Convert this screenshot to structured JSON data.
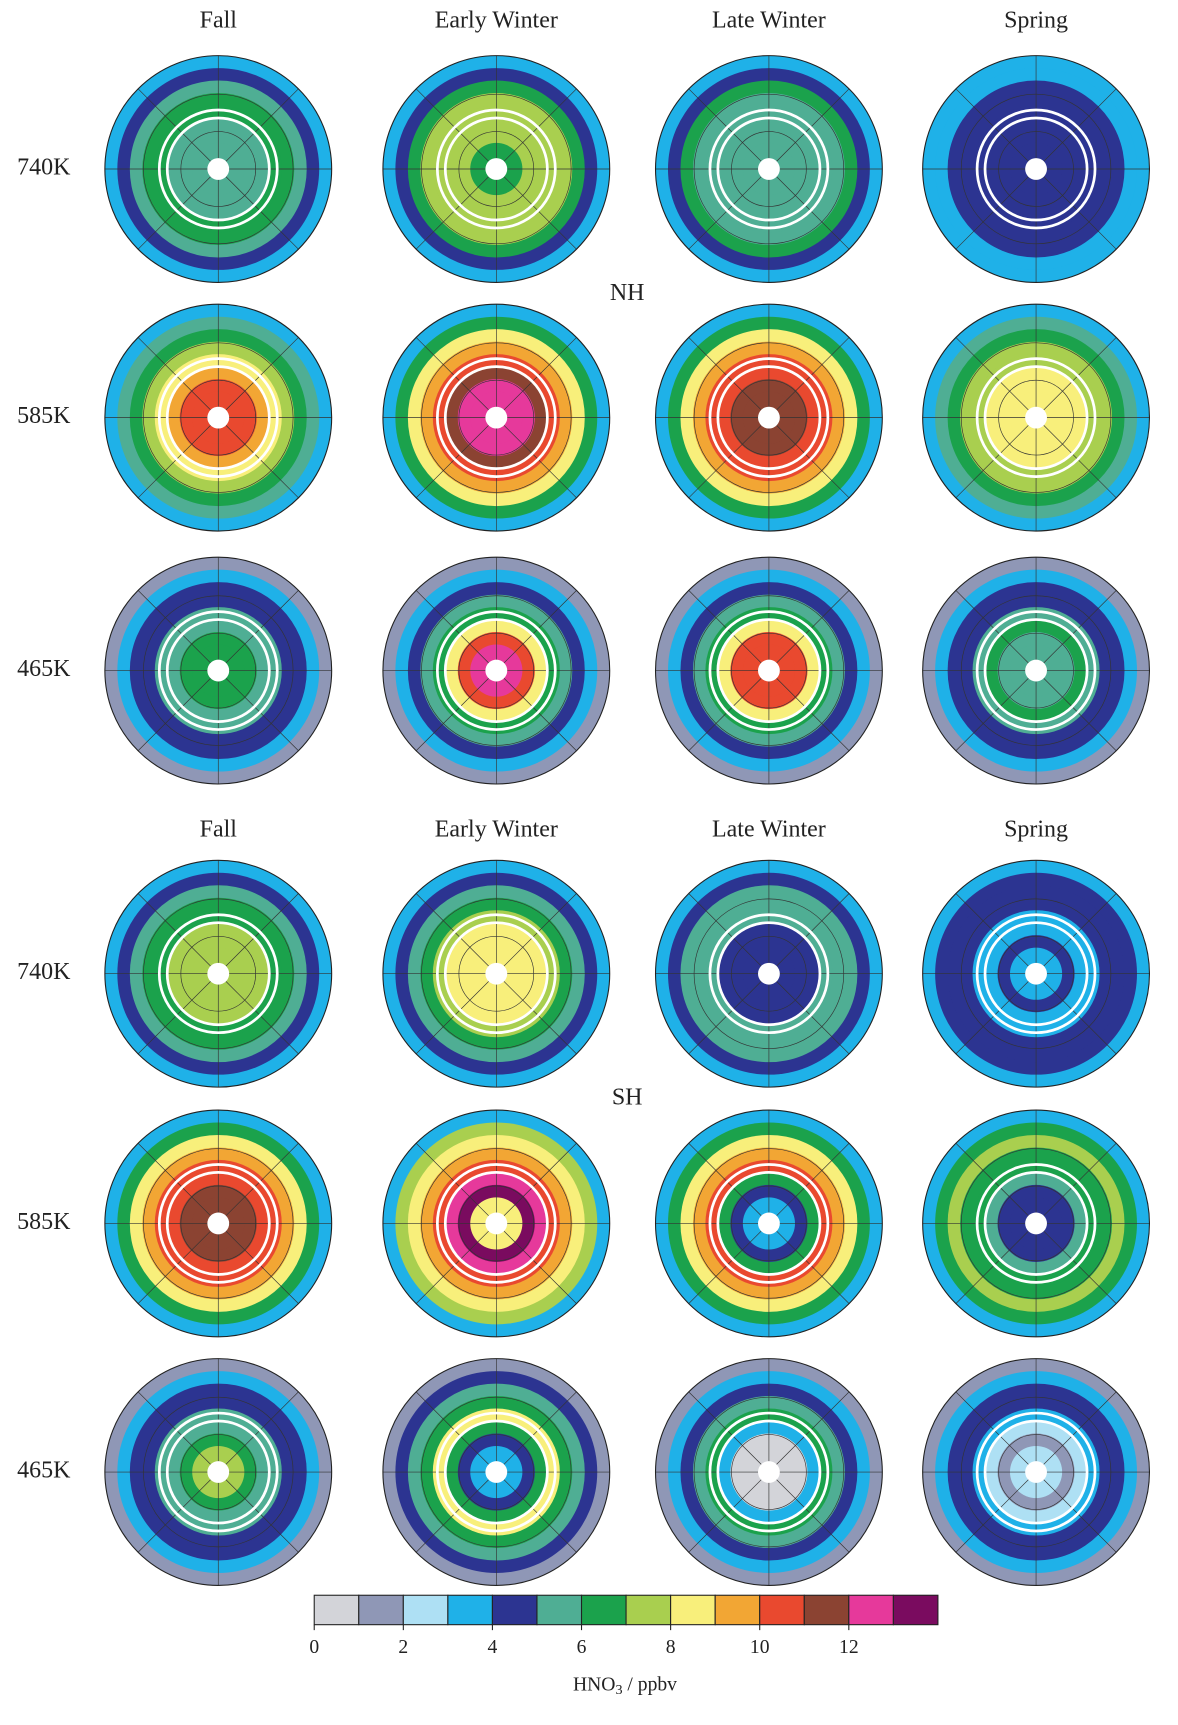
{
  "sections": [
    {
      "label": "NH",
      "columns": [
        "Fall",
        "Early Winter",
        "Late Winter",
        "Spring"
      ],
      "rows": [
        {
          "label": "740K",
          "maps": [
            [
              3.5,
              4.5,
              5.5,
              6.5,
              6.5,
              5.5,
              5.5,
              5.5
            ],
            [
              3.5,
              4.5,
              6.5,
              7.5,
              7.5,
              7.5,
              7.5,
              6.5
            ],
            [
              3.5,
              4.5,
              6.5,
              5.5,
              5.5,
              5.5,
              5.5,
              5.5
            ],
            [
              3.5,
              3.5,
              4.5,
              4.5,
              4.5,
              4.5,
              4.5,
              4.5
            ]
          ]
        },
        {
          "label": "585K",
          "maps": [
            [
              3.5,
              5.5,
              6.5,
              7.5,
              8.5,
              9.5,
              10.5,
              10.5
            ],
            [
              3.5,
              6.5,
              8.5,
              9.5,
              10.5,
              11.5,
              12.5,
              12.5
            ],
            [
              3.5,
              6.5,
              8.5,
              9.5,
              10.5,
              10.5,
              11.5,
              11.5
            ],
            [
              3.5,
              5.5,
              6.5,
              7.5,
              7.5,
              8.5,
              8.5,
              8.5
            ]
          ]
        },
        {
          "label": "465K",
          "maps": [
            [
              1.5,
              3.5,
              4.5,
              4.5,
              5.5,
              5.5,
              6.5,
              6.5
            ],
            [
              1.5,
              3.5,
              4.5,
              5.5,
              6.5,
              8.5,
              10.5,
              12.5
            ],
            [
              1.5,
              3.5,
              4.5,
              5.5,
              6.5,
              8.5,
              10.5,
              10.5
            ],
            [
              1.5,
              3.5,
              4.5,
              4.5,
              5.5,
              6.5,
              5.5,
              5.5
            ]
          ]
        }
      ]
    },
    {
      "label": "SH",
      "columns": [
        "Fall",
        "Early Winter",
        "Late Winter",
        "Spring"
      ],
      "rows": [
        {
          "label": "740K",
          "maps": [
            [
              3.5,
              4.5,
              5.5,
              6.5,
              6.5,
              7.5,
              7.5,
              7.5
            ],
            [
              3.5,
              4.5,
              5.5,
              6.5,
              7.5,
              8.5,
              8.5,
              8.5
            ],
            [
              3.5,
              4.5,
              5.5,
              5.5,
              5.5,
              4.5,
              4.5,
              4.5
            ],
            [
              3.5,
              4.5,
              4.5,
              4.5,
              3.5,
              3.5,
              4.5,
              3.5
            ]
          ]
        },
        {
          "label": "585K",
          "maps": [
            [
              3.5,
              6.5,
              8.5,
              9.5,
              10.5,
              10.5,
              11.5,
              11.5
            ],
            [
              3.5,
              7.5,
              8.5,
              9.5,
              10.5,
              12.5,
              13.5,
              8.5
            ],
            [
              3.5,
              6.5,
              8.5,
              9.5,
              10.5,
              6.5,
              4.5,
              3.5
            ],
            [
              3.5,
              6.5,
              7.5,
              6.5,
              6.5,
              5.5,
              4.5,
              4.5
            ]
          ]
        },
        {
          "label": "465K",
          "maps": [
            [
              1.5,
              3.5,
              4.5,
              4.5,
              5.5,
              5.5,
              6.5,
              7.5
            ],
            [
              1.5,
              4.5,
              5.5,
              6.5,
              8.5,
              6.5,
              4.5,
              3.5
            ],
            [
              1.5,
              3.5,
              4.5,
              5.5,
              6.5,
              3.5,
              0.5,
              0.5
            ],
            [
              1.5,
              3.5,
              4.5,
              4.5,
              3.5,
              2.5,
              1.5,
              2.5
            ]
          ]
        }
      ]
    }
  ],
  "colorbar": {
    "xlim": [
      0,
      14
    ],
    "xticks": [
      0,
      2,
      4,
      6,
      8,
      10,
      12
    ],
    "colors": [
      "#d3d4d9",
      "#8f97b6",
      "#aee0f4",
      "#1fb1e8",
      "#2c3491",
      "#4fae94",
      "#1ba24c",
      "#a9cf4f",
      "#f8ef7b",
      "#f2a634",
      "#e9492f",
      "#8b4332",
      "#e6399b",
      "#7a0b5f"
    ],
    "label": "HNO",
    "label_sub": "3",
    "label_rest": " / ppbv"
  }
}
